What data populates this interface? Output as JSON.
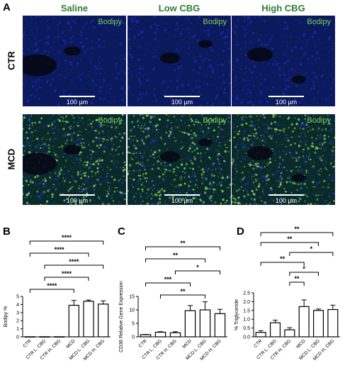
{
  "figure": {
    "panel_letters": {
      "A": "A",
      "B": "B",
      "C": "C",
      "D": "D"
    },
    "column_headers": [
      "Saline",
      "Low CBG",
      "High CBG"
    ],
    "row_labels": [
      "CTR",
      "MCD"
    ],
    "stain_label": "Bodipy",
    "scale_bar": "100 µm",
    "colors": {
      "stain": "#7ccf57",
      "nuclei": "#1a2bb0",
      "header": "#2e7d32"
    }
  },
  "chart_data": [
    {
      "panel": "B",
      "type": "bar",
      "ylabel": "Bodipy %",
      "ylim": [
        0,
        5
      ],
      "yticks": [
        0,
        1,
        2,
        3,
        4,
        5
      ],
      "categories": [
        "CTR",
        "CTR L. CBG",
        "CTR H. CBG",
        "MCD",
        "MCD L. CBG",
        "MCD H. CBG"
      ],
      "values": [
        0.01,
        0.01,
        0.01,
        3.9,
        4.4,
        4.05
      ],
      "errors": [
        0.0,
        0.0,
        0.0,
        0.6,
        0.15,
        0.4
      ],
      "significance": [
        {
          "from": 0,
          "to": 5,
          "label": "****"
        },
        {
          "from": 0,
          "to": 4,
          "label": "****"
        },
        {
          "from": 1,
          "to": 5,
          "label": "****"
        },
        {
          "from": 1,
          "to": 4,
          "label": "****"
        },
        {
          "from": 0,
          "to": 3,
          "label": "****"
        }
      ]
    },
    {
      "panel": "C",
      "type": "bar",
      "ylabel": "CD36 Relative Gene Expression",
      "ylim": [
        0,
        15
      ],
      "yticks": [
        0,
        5,
        10,
        15
      ],
      "categories": [
        "CTR",
        "CTR L. CBG",
        "CTR H. CBG",
        "MCD",
        "MCD L. CBG",
        "MCD H. CBG"
      ],
      "values": [
        0.8,
        1.7,
        1.5,
        9.7,
        10.0,
        8.6
      ],
      "errors": [
        0.1,
        0.2,
        0.4,
        1.9,
        3.0,
        1.6
      ],
      "significance": [
        {
          "from": 0,
          "to": 5,
          "label": "**"
        },
        {
          "from": 0,
          "to": 4,
          "label": "**"
        },
        {
          "from": 2,
          "to": 5,
          "label": "*"
        },
        {
          "from": 0,
          "to": 3,
          "label": "***"
        },
        {
          "from": 1,
          "to": 4,
          "label": "**"
        }
      ]
    },
    {
      "panel": "D",
      "type": "bar",
      "ylabel": "% Triglyceride",
      "ylim": [
        0,
        2.5
      ],
      "yticks": [
        0.0,
        0.5,
        1.0,
        1.5,
        2.0,
        2.5
      ],
      "categories": [
        "CTR",
        "CTR L. CBG",
        "CTR H. CBG",
        "MCD",
        "MCD L. CBG",
        "MCD H. CBG"
      ],
      "values": [
        0.25,
        0.8,
        0.4,
        1.72,
        1.5,
        1.55
      ],
      "errors": [
        0.1,
        0.15,
        0.12,
        0.38,
        0.08,
        0.25
      ],
      "significance": [
        {
          "from": 0,
          "to": 5,
          "label": "**"
        },
        {
          "from": 0,
          "to": 4,
          "label": "**"
        },
        {
          "from": 2,
          "to": 5,
          "label": "*"
        },
        {
          "from": 0,
          "to": 3,
          "label": "**"
        },
        {
          "from": 2,
          "to": 4,
          "label": "*"
        },
        {
          "from": 2,
          "to": 3,
          "label": "**"
        }
      ]
    }
  ]
}
